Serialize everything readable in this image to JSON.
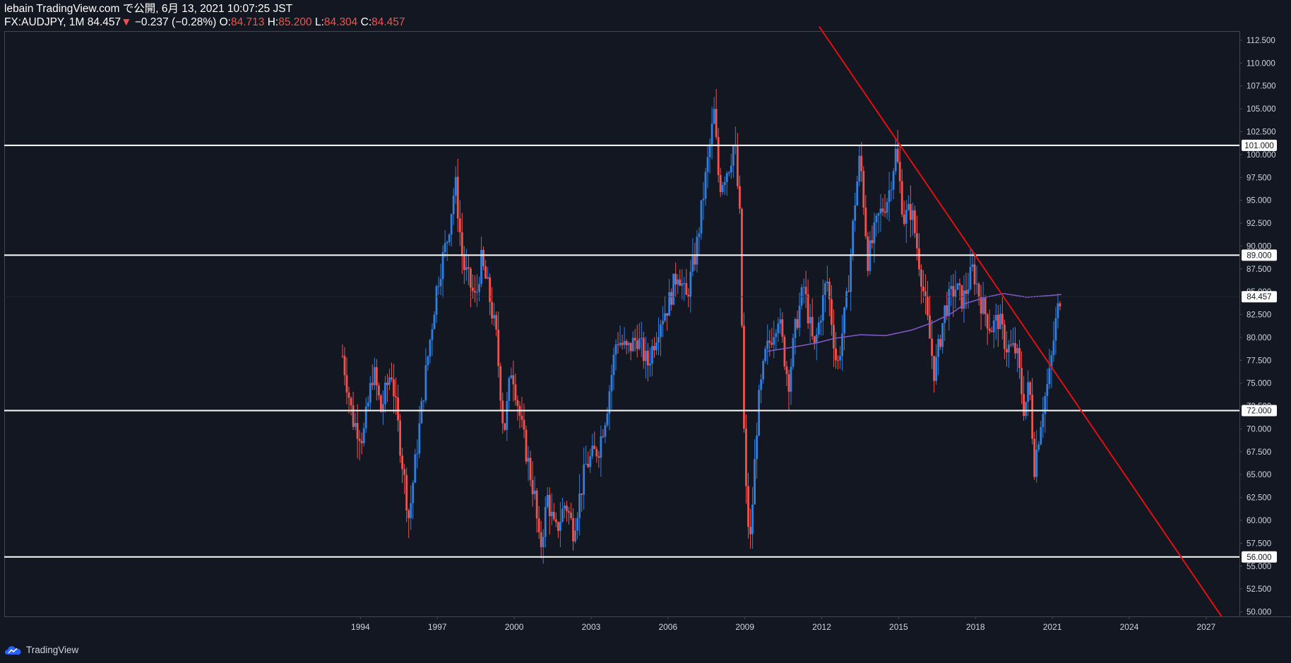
{
  "header": {
    "line1": "lebain TradingView.com で公開, 6月 13, 2021 10:07:25 JST",
    "symbol": "FX:AUDJPY, 1M",
    "last": "84.457",
    "change_arrow": "▼",
    "change": "−0.237 (−0.28%)",
    "o_label": "O:",
    "o": "84.713",
    "h_label": "H:",
    "h": "85.200",
    "l_label": "L:",
    "l": "84.304",
    "c_label": "C:",
    "c": "84.457"
  },
  "footer": {
    "logo_text": "TradingView",
    "logo_icon": "tradingview-cloud-icon"
  },
  "colors": {
    "background": "#131722",
    "up": "#2e7fe0",
    "down": "#ef5350",
    "trendline": "#e01010",
    "moving_average": "#7e57c2",
    "level_lines": "#ffffff",
    "axis_text": "#d1d4dc"
  },
  "chart_data": {
    "type": "candlestick",
    "symbol": "FX:AUDJPY",
    "interval": "1M",
    "y_ticks": [
      "112.500",
      "110.000",
      "107.500",
      "105.000",
      "102.500",
      "100.000",
      "97.500",
      "95.000",
      "92.500",
      "90.000",
      "87.500",
      "85.000",
      "82.500",
      "80.000",
      "77.500",
      "75.000",
      "72.500",
      "70.000",
      "67.500",
      "65.000",
      "62.500",
      "60.000",
      "57.500",
      "55.000",
      "52.500",
      "50.000"
    ],
    "x_ticks": [
      "1994",
      "1997",
      "2000",
      "2003",
      "2006",
      "2009",
      "2012",
      "2015",
      "2018",
      "2021",
      "2024",
      "2027"
    ],
    "ylim": [
      49.5,
      113.5
    ],
    "xlim": [
      1980.1,
      2028.3
    ],
    "last_price_label": "84.457",
    "horizontal_levels": [
      {
        "value": 101.0,
        "label": "101.000"
      },
      {
        "value": 89.0,
        "label": "89.000"
      },
      {
        "value": 72.0,
        "label": "72.000"
      },
      {
        "value": 56.0,
        "label": "56.000"
      }
    ],
    "trendline": {
      "x1": 2011.9,
      "y1": 114.0,
      "x2": 2027.6,
      "y2": 49.5
    },
    "moving_average": [
      [
        2009.9,
        78.5
      ],
      [
        2010.8,
        78.9
      ],
      [
        2011.8,
        79.4
      ],
      [
        2012.5,
        79.9
      ],
      [
        2013.5,
        80.3
      ],
      [
        2014.5,
        80.2
      ],
      [
        2015.5,
        80.8
      ],
      [
        2016.3,
        81.6
      ],
      [
        2017.1,
        82.7
      ],
      [
        2017.6,
        83.7
      ],
      [
        2018.4,
        84.4
      ],
      [
        2019.1,
        84.8
      ],
      [
        2020.0,
        84.4
      ],
      [
        2021.0,
        84.6
      ],
      [
        2021.35,
        84.7
      ]
    ],
    "price_path": [
      [
        1993.3,
        78.0
      ],
      [
        1993.7,
        71.0
      ],
      [
        1994.1,
        69.0
      ],
      [
        1994.5,
        76.5
      ],
      [
        1994.8,
        72.0
      ],
      [
        1995.2,
        76.5
      ],
      [
        1995.5,
        69.5
      ],
      [
        1995.9,
        60.0
      ],
      [
        1996.0,
        63.0
      ],
      [
        1996.5,
        75.0
      ],
      [
        1997.0,
        86.0
      ],
      [
        1997.4,
        91.0
      ],
      [
        1997.7,
        97.0
      ],
      [
        1998.0,
        88.0
      ],
      [
        1998.5,
        84.0
      ],
      [
        1998.7,
        88.5
      ],
      [
        1999.0,
        85.0
      ],
      [
        1999.3,
        80.0
      ],
      [
        1999.6,
        69.5
      ],
      [
        1999.9,
        77.0
      ],
      [
        2000.3,
        70.0
      ],
      [
        2000.8,
        62.5
      ],
      [
        2001.0,
        56.5
      ],
      [
        2001.3,
        62.5
      ],
      [
        2001.6,
        58.5
      ],
      [
        2002.0,
        62.0
      ],
      [
        2002.3,
        59.0
      ],
      [
        2002.8,
        66.0
      ],
      [
        2003.3,
        68.0
      ],
      [
        2003.6,
        72.0
      ],
      [
        2004.0,
        80.0
      ],
      [
        2004.4,
        78.5
      ],
      [
        2004.8,
        80.0
      ],
      [
        2005.2,
        77.0
      ],
      [
        2005.7,
        82.0
      ],
      [
        2006.0,
        83.5
      ],
      [
        2006.4,
        87.5
      ],
      [
        2006.7,
        84.0
      ],
      [
        2007.1,
        89.5
      ],
      [
        2007.4,
        96.0
      ],
      [
        2007.8,
        104.5
      ],
      [
        2008.0,
        96.5
      ],
      [
        2008.4,
        99.0
      ],
      [
        2008.6,
        101.5
      ],
      [
        2008.8,
        93.0
      ],
      [
        2009.0,
        65.0
      ],
      [
        2009.2,
        57.0
      ],
      [
        2009.5,
        72.0
      ],
      [
        2009.8,
        78.0
      ],
      [
        2010.3,
        82.5
      ],
      [
        2010.7,
        75.0
      ],
      [
        2011.0,
        81.5
      ],
      [
        2011.3,
        85.5
      ],
      [
        2011.7,
        78.5
      ],
      [
        2012.2,
        86.5
      ],
      [
        2012.6,
        76.5
      ],
      [
        2013.0,
        84.5
      ],
      [
        2013.3,
        95.0
      ],
      [
        2013.5,
        100.0
      ],
      [
        2013.8,
        88.5
      ],
      [
        2014.2,
        93.0
      ],
      [
        2014.6,
        95.5
      ],
      [
        2014.9,
        100.5
      ],
      [
        2015.2,
        93.0
      ],
      [
        2015.5,
        94.0
      ],
      [
        2015.9,
        86.5
      ],
      [
        2016.4,
        76.0
      ],
      [
        2016.8,
        83.0
      ],
      [
        2017.2,
        85.5
      ],
      [
        2017.5,
        84.0
      ],
      [
        2017.9,
        87.5
      ],
      [
        2018.2,
        84.0
      ],
      [
        2018.6,
        81.0
      ],
      [
        2018.9,
        82.0
      ],
      [
        2019.2,
        79.0
      ],
      [
        2019.6,
        78.5
      ],
      [
        2019.9,
        72.0
      ],
      [
        2020.1,
        75.0
      ],
      [
        2020.3,
        66.0
      ],
      [
        2020.6,
        72.0
      ],
      [
        2020.9,
        76.0
      ],
      [
        2021.1,
        81.0
      ],
      [
        2021.3,
        84.5
      ]
    ]
  }
}
